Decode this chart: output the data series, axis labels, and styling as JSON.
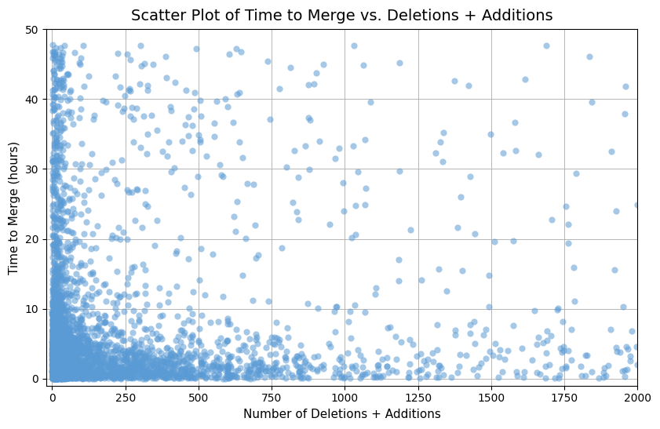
{
  "title": "Scatter Plot of Time to Merge vs. Deletions + Additions",
  "xlabel": "Number of Deletions + Additions",
  "ylabel": "Time to Merge (hours)",
  "xlim": [
    -20,
    2000
  ],
  "ylim": [
    -1,
    50
  ],
  "yticks": [
    0,
    10,
    20,
    30,
    40,
    50
  ],
  "xticks": [
    0,
    250,
    500,
    750,
    1000,
    1250,
    1500,
    1750,
    2000
  ],
  "dot_color": "#5b9bd5",
  "dot_alpha": 0.55,
  "dot_size": 35,
  "background_color": "#ffffff",
  "grid_color": "#aaaaaa",
  "seed": 42,
  "title_fontsize": 14,
  "label_fontsize": 11
}
